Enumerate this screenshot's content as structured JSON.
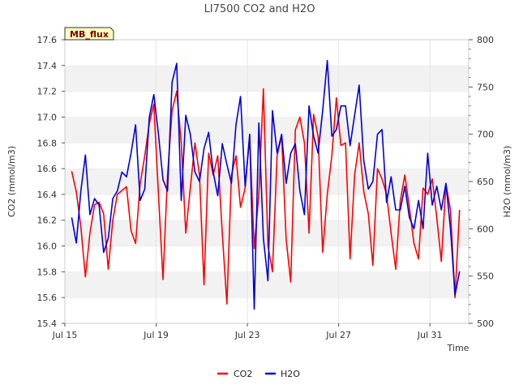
{
  "chart_data": {
    "type": "line",
    "title": "LI7500 CO2 and H2O",
    "badge": "MB_flux",
    "xlabel": "Time",
    "ylabel_left": "CO2 (mmol/m3)",
    "ylabel_right": "H2O (mmol/m3)",
    "x_ticks": [
      "Jul 15",
      "Jul 19",
      "Jul 23",
      "Jul 27",
      "Jul 31"
    ],
    "x_start_day": 15,
    "x_range_days": [
      15.0,
      32.7
    ],
    "ylim_left": [
      15.4,
      17.6
    ],
    "ylim_right": [
      500,
      800
    ],
    "y_ticks_left": [
      "15.4",
      "15.6",
      "15.8",
      "16.0",
      "16.2",
      "16.4",
      "16.6",
      "16.8",
      "17.0",
      "17.2",
      "17.4",
      "17.6"
    ],
    "y_ticks_right": [
      "500",
      "550",
      "600",
      "650",
      "700",
      "750",
      "800"
    ],
    "grid": true,
    "legend_position": "bottom-center",
    "colors": {
      "CO2": "#ff0000",
      "H2O": "#0000dd",
      "band": "#f2f2f2",
      "badge_bg": "#ffffc0"
    },
    "series": [
      {
        "name": "CO2",
        "axis": "left",
        "x_days": [
          15.3,
          15.5,
          15.7,
          15.9,
          16.1,
          16.3,
          16.5,
          16.7,
          16.9,
          17.1,
          17.3,
          17.5,
          17.7,
          17.9,
          18.1,
          18.3,
          18.5,
          18.7,
          18.9,
          19.1,
          19.3,
          19.5,
          19.7,
          19.9,
          20.1,
          20.3,
          20.5,
          20.7,
          20.9,
          21.1,
          21.3,
          21.5,
          21.7,
          21.9,
          22.1,
          22.3,
          22.5,
          22.7,
          22.9,
          23.1,
          23.3,
          23.5,
          23.7,
          23.9,
          24.1,
          24.3,
          24.5,
          24.7,
          24.9,
          25.1,
          25.3,
          25.5,
          25.7,
          25.9,
          26.1,
          26.3,
          26.5,
          26.7,
          26.9,
          27.1,
          27.3,
          27.5,
          27.7,
          27.9,
          28.1,
          28.3,
          28.5,
          28.7,
          28.9,
          29.1,
          29.3,
          29.5,
          29.7,
          29.9,
          30.1,
          30.3,
          30.5,
          30.7,
          30.9,
          31.1,
          31.3,
          31.5,
          31.7,
          31.9,
          32.1,
          32.3
        ],
        "values": [
          16.58,
          16.42,
          16.15,
          15.76,
          16.1,
          16.32,
          16.34,
          16.25,
          15.82,
          16.2,
          16.4,
          16.43,
          16.46,
          16.12,
          16.02,
          16.48,
          16.7,
          16.95,
          17.1,
          16.4,
          15.74,
          16.55,
          17.05,
          17.2,
          16.8,
          16.1,
          16.45,
          16.8,
          16.55,
          15.7,
          16.72,
          16.55,
          16.7,
          16.1,
          15.55,
          16.55,
          16.7,
          16.3,
          16.45,
          16.85,
          15.98,
          16.4,
          17.22,
          16.0,
          15.8,
          16.7,
          16.85,
          16.05,
          15.72,
          16.9,
          17.0,
          16.8,
          16.1,
          17.02,
          16.85,
          15.95,
          16.4,
          16.7,
          17.15,
          16.78,
          16.8,
          15.9,
          16.55,
          16.8,
          16.42,
          16.25,
          15.85,
          16.6,
          16.52,
          16.4,
          16.1,
          15.82,
          16.35,
          16.55,
          16.3,
          16.02,
          15.9,
          16.45,
          16.4,
          16.52,
          16.22,
          15.88,
          16.48,
          16.28,
          15.6,
          16.28
        ]
      },
      {
        "name": "H2O",
        "axis": "right",
        "x_days": [
          15.3,
          15.5,
          15.7,
          15.9,
          16.1,
          16.3,
          16.5,
          16.7,
          16.9,
          17.1,
          17.3,
          17.5,
          17.7,
          17.9,
          18.1,
          18.3,
          18.5,
          18.7,
          18.9,
          19.1,
          19.3,
          19.5,
          19.7,
          19.9,
          20.1,
          20.3,
          20.5,
          20.7,
          20.9,
          21.1,
          21.3,
          21.5,
          21.7,
          21.9,
          22.1,
          22.3,
          22.5,
          22.7,
          22.9,
          23.1,
          23.3,
          23.5,
          23.7,
          23.9,
          24.1,
          24.3,
          24.5,
          24.7,
          24.9,
          25.1,
          25.3,
          25.5,
          25.7,
          25.9,
          26.1,
          26.3,
          26.5,
          26.7,
          26.9,
          27.1,
          27.3,
          27.5,
          27.7,
          27.9,
          28.1,
          28.3,
          28.5,
          28.7,
          28.9,
          29.1,
          29.3,
          29.5,
          29.7,
          29.9,
          30.1,
          30.3,
          30.5,
          30.7,
          30.9,
          31.1,
          31.3,
          31.5,
          31.7,
          31.9,
          32.1,
          32.3
        ],
        "values": [
          612,
          585,
          640,
          678,
          615,
          632,
          625,
          575,
          590,
          632,
          640,
          660,
          655,
          680,
          710,
          630,
          642,
          718,
          742,
          700,
          652,
          640,
          755,
          775,
          630,
          720,
          700,
          660,
          650,
          685,
          702,
          660,
          635,
          690,
          668,
          648,
          710,
          740,
          645,
          700,
          515,
          712,
          590,
          545,
          725,
          680,
          700,
          648,
          680,
          690,
          640,
          615,
          730,
          698,
          680,
          725,
          778,
          698,
          705,
          730,
          730,
          688,
          720,
          752,
          672,
          642,
          650,
          700,
          705,
          628,
          655,
          620,
          620,
          645,
          612,
          600,
          630,
          600,
          680,
          625,
          645,
          620,
          648,
          600,
          530,
          555
        ]
      }
    ]
  }
}
